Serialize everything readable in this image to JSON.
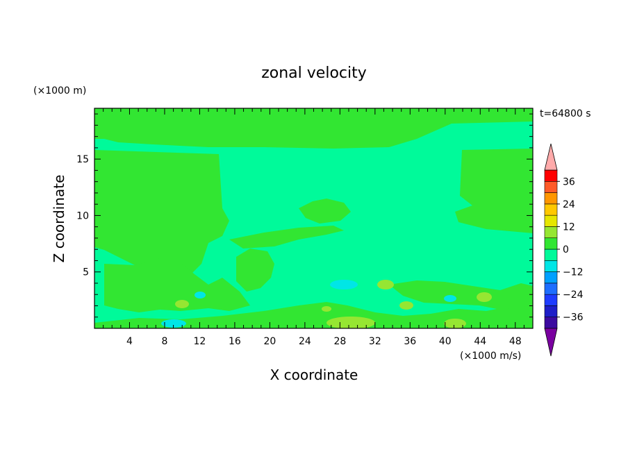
{
  "chart_data": {
    "type": "heatmap",
    "title": "zonal velocity",
    "xlabel": "X coordinate",
    "ylabel": "Z coordinate",
    "x_unit": "(×1000 m/s)",
    "y_unit": "(×1000 m)",
    "time_label": "t=64800 s",
    "xlim": [
      0,
      50
    ],
    "ylim": [
      0,
      19.5
    ],
    "x_ticks": [
      4,
      8,
      12,
      16,
      20,
      24,
      28,
      32,
      36,
      40,
      44,
      48
    ],
    "y_ticks": [
      5,
      10,
      15
    ],
    "colorbar": {
      "ticks": [
        36,
        24,
        12,
        0,
        -12,
        -24,
        -36
      ],
      "levels": [
        -42,
        -36,
        -30,
        -24,
        -18,
        -12,
        -6,
        0,
        6,
        12,
        18,
        24,
        30,
        36,
        42
      ],
      "colors": [
        "#7a00a0",
        "#3c0aa0",
        "#1e1ec8",
        "#1e3cff",
        "#1e6eff",
        "#00a0ff",
        "#00e6e6",
        "#00fa9a",
        "#32e632",
        "#96e632",
        "#e6e600",
        "#ffc800",
        "#ff9600",
        "#ff5a28",
        "#ff0000",
        "#ffaaaa"
      ],
      "extend": "both"
    },
    "background_value_range": [
      -6,
      0
    ],
    "regions": [
      {
        "range": [
          0,
          6
        ],
        "description": "upper domain band z 16-19.5 and left/right blocks"
      },
      {
        "range": [
          6,
          12
        ],
        "description": "scattered near-surface cells, x 28-30 and x 40-42"
      },
      {
        "range": [
          -12,
          -6
        ],
        "description": "small cells near surface around x 9, x 27, x 41"
      }
    ]
  }
}
